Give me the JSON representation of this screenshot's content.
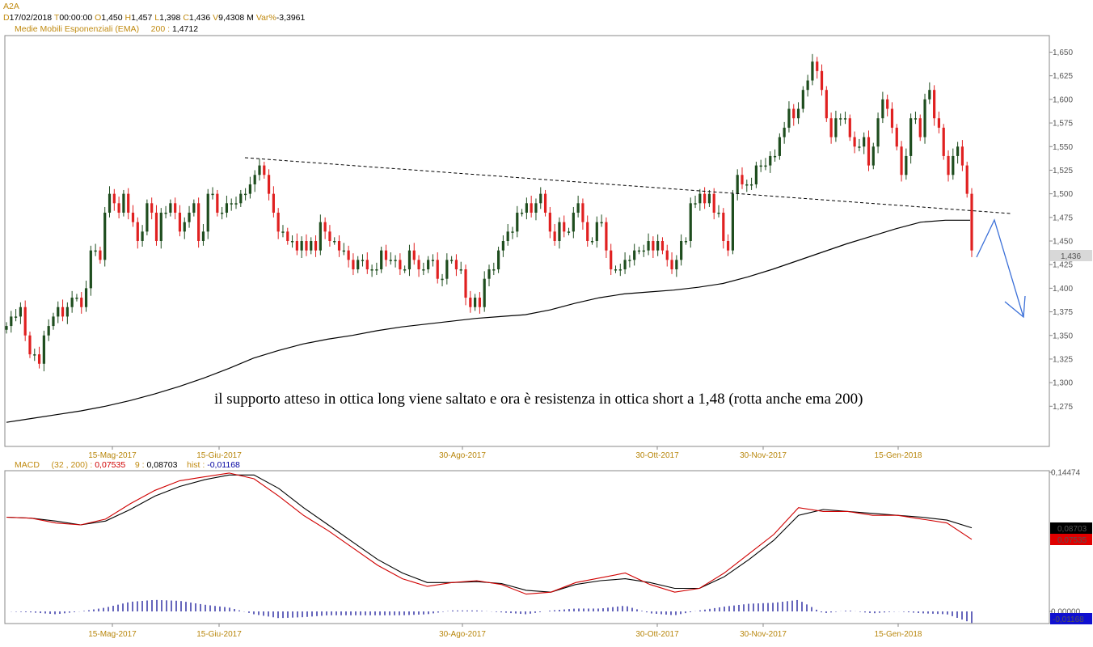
{
  "header": {
    "symbol": "A2A",
    "d_label": "D",
    "date": "17/02/2018",
    "t_label": "T",
    "time": "00:00:00",
    "o_label": "O",
    "open": "1,450",
    "h_label": "H",
    "high": "1,457",
    "l_label": "L",
    "low": "1,398",
    "c_label": "C",
    "close": "1,436",
    "v_label": "V",
    "volume": "9,4308 M",
    "var_label": "Var%",
    "var": "-3,3961",
    "ema_label": "Medie Mobili Esponenziali (EMA)",
    "ema_period": "200 :",
    "ema_value": "1,4712"
  },
  "macd_header": {
    "label": "MACD",
    "params": "(32 , 200) :",
    "macd_value": "0,07535",
    "signal_period": "9 :",
    "signal_value": "0,08703",
    "hist_label": "hist :",
    "hist_value": "-0,01168"
  },
  "annotation": "il supporto atteso in ottica long viene saltato e ora è resistenza in ottica short a 1,48 (rotta anche ema 200)",
  "colors": {
    "up": "#1e4d1e",
    "down": "#e02020",
    "ema": "#000000",
    "macd_line": "#d00000",
    "signal_line": "#000000",
    "histogram": "#000090",
    "arrow": "#3a6fd8",
    "date_label": "#b8860b"
  },
  "chart_data": [
    {
      "type": "candlestick",
      "title": "A2A",
      "ylim": [
        1.25,
        1.66
      ],
      "y_ticks": [
        "1,275",
        "1,300",
        "1,325",
        "1,350",
        "1,375",
        "1,400",
        "1,425",
        "1,450",
        "1,475",
        "1,500",
        "1,525",
        "1,550",
        "1,575",
        "1,600",
        "1,625",
        "1,650"
      ],
      "x_ticks": [
        "15-Mag-2017",
        "15-Giu-2017",
        "30-Ago-2017",
        "30-Ott-2017",
        "30-Nov-2017",
        "15-Gen-2018"
      ],
      "last_price_label": "1,436",
      "close": [
        1.36,
        1.37,
        1.37,
        1.38,
        1.35,
        1.33,
        1.33,
        1.32,
        1.35,
        1.36,
        1.37,
        1.38,
        1.37,
        1.38,
        1.39,
        1.39,
        1.38,
        1.4,
        1.44,
        1.44,
        1.43,
        1.48,
        1.5,
        1.49,
        1.48,
        1.5,
        1.48,
        1.47,
        1.45,
        1.46,
        1.49,
        1.48,
        1.45,
        1.48,
        1.48,
        1.49,
        1.48,
        1.46,
        1.47,
        1.48,
        1.49,
        1.45,
        1.46,
        1.5,
        1.5,
        1.48,
        1.48,
        1.49,
        1.49,
        1.49,
        1.5,
        1.5,
        1.51,
        1.52,
        1.53,
        1.52,
        1.5,
        1.48,
        1.46,
        1.46,
        1.45,
        1.45,
        1.44,
        1.45,
        1.44,
        1.45,
        1.44,
        1.47,
        1.46,
        1.45,
        1.45,
        1.44,
        1.44,
        1.43,
        1.42,
        1.43,
        1.43,
        1.42,
        1.42,
        1.42,
        1.44,
        1.43,
        1.43,
        1.43,
        1.42,
        1.42,
        1.44,
        1.43,
        1.42,
        1.42,
        1.43,
        1.43,
        1.41,
        1.41,
        1.43,
        1.43,
        1.42,
        1.42,
        1.39,
        1.38,
        1.39,
        1.38,
        1.41,
        1.42,
        1.42,
        1.44,
        1.45,
        1.46,
        1.46,
        1.48,
        1.48,
        1.49,
        1.48,
        1.49,
        1.5,
        1.48,
        1.46,
        1.45,
        1.47,
        1.46,
        1.46,
        1.48,
        1.49,
        1.47,
        1.45,
        1.45,
        1.47,
        1.47,
        1.44,
        1.42,
        1.42,
        1.42,
        1.43,
        1.43,
        1.44,
        1.44,
        1.44,
        1.45,
        1.44,
        1.45,
        1.44,
        1.43,
        1.42,
        1.43,
        1.45,
        1.45,
        1.49,
        1.49,
        1.5,
        1.49,
        1.5,
        1.48,
        1.48,
        1.45,
        1.44,
        1.5,
        1.52,
        1.51,
        1.51,
        1.51,
        1.53,
        1.53,
        1.53,
        1.54,
        1.54,
        1.56,
        1.57,
        1.59,
        1.58,
        1.59,
        1.61,
        1.62,
        1.64,
        1.63,
        1.61,
        1.58,
        1.56,
        1.58,
        1.58,
        1.58,
        1.56,
        1.55,
        1.55,
        1.56,
        1.53,
        1.55,
        1.58,
        1.6,
        1.59,
        1.57,
        1.55,
        1.52,
        1.54,
        1.58,
        1.58,
        1.56,
        1.6,
        1.61,
        1.58,
        1.57,
        1.54,
        1.52,
        1.54,
        1.55,
        1.53,
        1.5,
        1.44
      ],
      "ema_200": [
        1.258,
        1.262,
        1.266,
        1.27,
        1.275,
        1.281,
        1.288,
        1.296,
        1.305,
        1.315,
        1.326,
        1.334,
        1.341,
        1.346,
        1.35,
        1.355,
        1.359,
        1.362,
        1.365,
        1.368,
        1.37,
        1.372,
        1.377,
        1.384,
        1.39,
        1.394,
        1.396,
        1.398,
        1.401,
        1.405,
        1.412,
        1.42,
        1.429,
        1.438,
        1.447,
        1.455,
        1.463,
        1.47,
        1.472,
        1.472
      ]
    },
    {
      "type": "line",
      "title": "MACD",
      "series": [
        {
          "name": "MACD (32 , 200)",
          "values": [
            0.098,
            0.097,
            0.092,
            0.09,
            0.096,
            0.112,
            0.126,
            0.136,
            0.14,
            0.144,
            0.138,
            0.12,
            0.1,
            0.084,
            0.066,
            0.048,
            0.034,
            0.026,
            0.03,
            0.032,
            0.028,
            0.018,
            0.02,
            0.03,
            0.035,
            0.04,
            0.028,
            0.02,
            0.024,
            0.04,
            0.06,
            0.08,
            0.108,
            0.104,
            0.104,
            0.1,
            0.1,
            0.096,
            0.092,
            0.075
          ]
        },
        {
          "name": "9",
          "values": [
            0.098,
            0.097,
            0.094,
            0.09,
            0.094,
            0.106,
            0.12,
            0.13,
            0.137,
            0.142,
            0.142,
            0.128,
            0.108,
            0.09,
            0.072,
            0.054,
            0.04,
            0.03,
            0.03,
            0.031,
            0.029,
            0.022,
            0.02,
            0.028,
            0.032,
            0.034,
            0.03,
            0.024,
            0.024,
            0.036,
            0.054,
            0.074,
            0.1,
            0.106,
            0.104,
            0.102,
            0.1,
            0.098,
            0.095,
            0.087
          ]
        },
        {
          "name": "hist",
          "values": [
            0.0,
            -0.001,
            -0.003,
            0.0,
            0.004,
            0.01,
            0.012,
            0.011,
            0.007,
            0.004,
            -0.003,
            -0.007,
            -0.006,
            -0.004,
            -0.004,
            -0.004,
            -0.004,
            -0.003,
            0.001,
            0.001,
            -0.001,
            -0.003,
            0.001,
            0.003,
            0.003,
            0.006,
            -0.002,
            -0.004,
            0.001,
            0.005,
            0.008,
            0.009,
            0.012,
            -0.002,
            0.001,
            -0.002,
            0.0,
            -0.002,
            -0.003,
            -0.012
          ]
        }
      ],
      "y_ticks": [
        "0,14474",
        "0,00000"
      ],
      "ylim": [
        -0.012,
        0.14474
      ],
      "last_labels": [
        "0,08703",
        "0,07535",
        "-0,01168"
      ],
      "x_ticks": [
        "15-Mag-2017",
        "15-Giu-2017",
        "30-Ago-2017",
        "30-Ott-2017",
        "30-Nov-2017",
        "15-Gen-2018"
      ]
    }
  ]
}
